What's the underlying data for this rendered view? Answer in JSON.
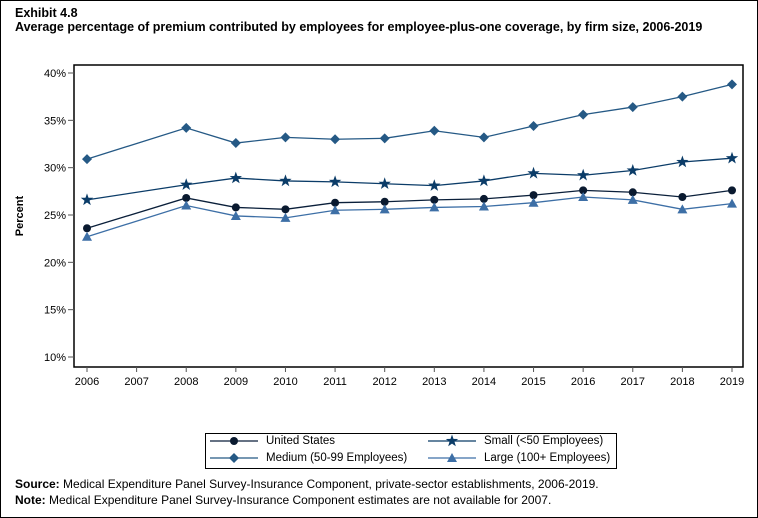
{
  "exhibit": "Exhibit 4.8",
  "chart_data": {
    "type": "line",
    "title": "Average percentage of premium contributed by employees for employee-plus-one coverage, by firm size, 2006-2019",
    "ylabel": "Percent",
    "xlabel": "",
    "ylim": [
      10,
      40
    ],
    "yticks": [
      "10%",
      "15%",
      "20%",
      "25%",
      "30%",
      "35%",
      "40%"
    ],
    "x": [
      2006,
      2007,
      2008,
      2009,
      2010,
      2011,
      2012,
      2013,
      2014,
      2015,
      2016,
      2017,
      2018,
      2019
    ],
    "legend_placement": "bottom",
    "series": [
      {
        "name": "United States",
        "color": "#0a1f3a",
        "marker": "circle",
        "values": [
          23.6,
          null,
          26.8,
          25.8,
          25.6,
          26.3,
          26.4,
          26.6,
          26.7,
          27.1,
          27.6,
          27.4,
          26.9,
          27.6
        ]
      },
      {
        "name": "Small (<50 Employees)",
        "color": "#0b3c68",
        "marker": "star",
        "values": [
          26.6,
          null,
          28.2,
          28.9,
          28.6,
          28.5,
          28.3,
          28.1,
          28.6,
          29.4,
          29.2,
          29.7,
          30.6,
          31.0
        ]
      },
      {
        "name": "Medium (50-99 Employees)",
        "color": "#255985",
        "marker": "diamond",
        "values": [
          30.9,
          null,
          34.2,
          32.6,
          33.2,
          33.0,
          33.1,
          33.9,
          33.2,
          34.4,
          35.6,
          36.4,
          37.5,
          38.8
        ]
      },
      {
        "name": "Large (100+ Employees)",
        "color": "#3d6fa6",
        "marker": "triangle",
        "values": [
          22.7,
          null,
          26.0,
          24.9,
          24.7,
          25.5,
          25.6,
          25.8,
          25.9,
          26.3,
          26.9,
          26.6,
          25.6,
          26.2
        ]
      }
    ]
  },
  "notes": {
    "source_label": "Source:",
    "source": " Medical Expenditure Panel Survey-Insurance Component, private-sector establishments, 2006-2019.",
    "note_label": "Note:",
    "note": " Medical Expenditure Panel Survey-Insurance Component estimates are not available for 2007."
  }
}
